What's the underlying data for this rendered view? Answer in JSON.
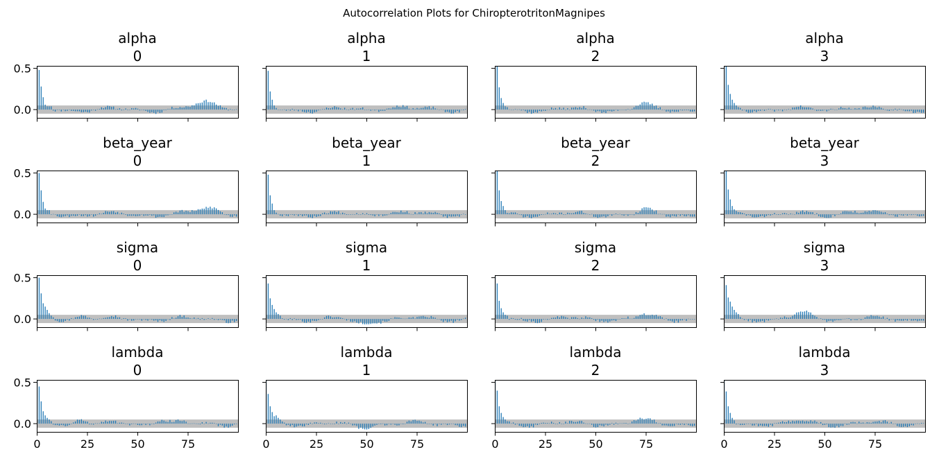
{
  "figure": {
    "title": "Autocorrelation Plots for ChiropterotritonMagnipes",
    "background": "#ffffff",
    "bar_color": "#1f77b4",
    "band_color": "#bfbfbf"
  },
  "chart_data": {
    "type": "bar",
    "kind": "autocorrelation",
    "grid": false,
    "layout": {
      "rows": 4,
      "cols": 4
    },
    "xlim": [
      0,
      100
    ],
    "ylim": [
      -0.1,
      0.53
    ],
    "x_ticks": [
      0,
      25,
      50,
      75
    ],
    "y_ticks": [
      0.0,
      0.5
    ],
    "y_tick_labels": [
      "0.0",
      "0.5"
    ],
    "x_tick_labels": [
      "0",
      "25",
      "50",
      "75"
    ],
    "confidence_band": [
      -0.05,
      0.05
    ],
    "lags": 100,
    "panels": [
      {
        "var": "alpha",
        "chain": "0",
        "ac": [
          1.0,
          0.48,
          0.28,
          0.15,
          0.06,
          0.04,
          0.04,
          0.04
        ],
        "tail_seed": 11,
        "bumps": [
          [
            86,
            10,
            0.09
          ]
        ]
      },
      {
        "var": "alpha",
        "chain": "1",
        "ac": [
          1.0,
          0.47,
          0.22,
          0.12,
          0.05,
          0.02
        ],
        "tail_seed": 23,
        "bumps": [
          [
            62,
            8,
            0.04
          ]
        ]
      },
      {
        "var": "alpha",
        "chain": "2",
        "ac": [
          1.0,
          0.55,
          0.27,
          0.14,
          0.08,
          0.04,
          0.03
        ],
        "tail_seed": 37,
        "bumps": [
          [
            73,
            5,
            0.06
          ]
        ]
      },
      {
        "var": "alpha",
        "chain": "3",
        "ac": [
          1.0,
          0.55,
          0.3,
          0.19,
          0.12,
          0.08,
          0.05,
          0.03
        ],
        "tail_seed": 41,
        "bumps": [
          [
            60,
            6,
            0.04
          ]
        ]
      },
      {
        "var": "beta_year",
        "chain": "0",
        "ac": [
          1.0,
          0.5,
          0.29,
          0.15,
          0.07,
          0.05,
          0.05
        ],
        "tail_seed": 53,
        "bumps": [
          [
            86,
            8,
            0.08
          ]
        ]
      },
      {
        "var": "beta_year",
        "chain": "1",
        "ac": [
          1.0,
          0.48,
          0.23,
          0.13,
          0.05,
          0.02
        ],
        "tail_seed": 67,
        "bumps": [
          [
            60,
            8,
            0.03
          ]
        ]
      },
      {
        "var": "beta_year",
        "chain": "2",
        "ac": [
          1.0,
          0.55,
          0.29,
          0.16,
          0.1,
          0.05
        ],
        "tail_seed": 71,
        "bumps": [
          [
            75,
            4,
            0.05
          ]
        ]
      },
      {
        "var": "beta_year",
        "chain": "3",
        "ac": [
          1.0,
          0.55,
          0.3,
          0.18,
          0.1,
          0.06,
          0.04
        ],
        "tail_seed": 83,
        "bumps": [
          [
            63,
            6,
            0.05
          ]
        ]
      },
      {
        "var": "sigma",
        "chain": "0",
        "ac": [
          1.0,
          0.5,
          0.31,
          0.19,
          0.15,
          0.11,
          0.07,
          0.04,
          0.02
        ],
        "tail_seed": 97,
        "bumps": [
          [
            22,
            5,
            0.05
          ]
        ]
      },
      {
        "var": "sigma",
        "chain": "1",
        "ac": [
          1.0,
          0.43,
          0.25,
          0.17,
          0.12,
          0.08,
          0.06,
          0.04
        ],
        "tail_seed": 101,
        "bumps": [
          [
            47,
            6,
            -0.06
          ]
        ]
      },
      {
        "var": "sigma",
        "chain": "2",
        "ac": [
          1.0,
          0.43,
          0.22,
          0.13,
          0.08,
          0.05,
          0.04
        ],
        "tail_seed": 113,
        "bumps": [
          [
            74,
            5,
            0.04
          ]
        ]
      },
      {
        "var": "sigma",
        "chain": "3",
        "ac": [
          1.0,
          0.41,
          0.26,
          0.21,
          0.15,
          0.11,
          0.08,
          0.06
        ],
        "tail_seed": 127,
        "bumps": [
          [
            40,
            8,
            0.06
          ]
        ]
      },
      {
        "var": "lambda",
        "chain": "0",
        "ac": [
          1.0,
          0.45,
          0.27,
          0.15,
          0.1,
          0.07,
          0.05,
          0.03
        ],
        "tail_seed": 131,
        "bumps": [
          [
            22,
            4,
            0.06
          ],
          [
            62,
            4,
            0.06
          ]
        ]
      },
      {
        "var": "lambda",
        "chain": "1",
        "ac": [
          1.0,
          0.36,
          0.21,
          0.14,
          0.09,
          0.1,
          0.07,
          0.05
        ],
        "tail_seed": 139,
        "bumps": [
          [
            45,
            8,
            -0.04
          ]
        ]
      },
      {
        "var": "lambda",
        "chain": "2",
        "ac": [
          1.0,
          0.4,
          0.21,
          0.13,
          0.08,
          0.05,
          0.03
        ],
        "tail_seed": 149,
        "bumps": [
          [
            72,
            8,
            0.03
          ]
        ]
      },
      {
        "var": "lambda",
        "chain": "3",
        "ac": [
          1.0,
          0.39,
          0.21,
          0.13,
          0.07,
          0.04
        ],
        "tail_seed": 157,
        "bumps": [
          [
            40,
            6,
            0.03
          ]
        ]
      }
    ]
  }
}
